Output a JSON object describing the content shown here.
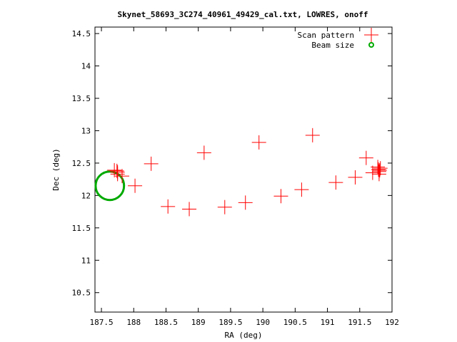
{
  "chart_data": {
    "type": "scatter",
    "title": "Skynet_58693_3C274_40961_49429_cal.txt, LOWRES, onoff",
    "xlabel": "RA (deg)",
    "ylabel": "Dec (deg)",
    "xlim": [
      187.4,
      192
    ],
    "ylim": [
      10.2,
      14.6
    ],
    "x_ticks": [
      187.5,
      188,
      188.5,
      189,
      189.5,
      190,
      190.5,
      191,
      191.5,
      192
    ],
    "x_tick_labels": [
      "187.5",
      "188",
      "188.5",
      "189",
      "189.5",
      "190",
      "190.5",
      "191",
      "191.5",
      "192"
    ],
    "y_ticks": [
      10.5,
      11,
      11.5,
      12,
      12.5,
      13,
      13.5,
      14,
      14.5
    ],
    "y_tick_labels": [
      "10.5",
      "11",
      "11.5",
      "12",
      "12.5",
      "13",
      "13.5",
      "14",
      "14.5"
    ],
    "grid": false,
    "legend_position": "top-right",
    "series": [
      {
        "name": "Scan pattern",
        "color": "#ff0000",
        "marker": "plus",
        "points": [
          [
            187.7,
            12.39
          ],
          [
            187.74,
            12.38
          ],
          [
            187.75,
            12.36
          ],
          [
            187.75,
            12.33
          ],
          [
            187.82,
            12.3
          ],
          [
            188.02,
            12.15
          ],
          [
            188.27,
            12.49
          ],
          [
            188.53,
            11.83
          ],
          [
            188.86,
            11.79
          ],
          [
            189.09,
            12.66
          ],
          [
            189.41,
            11.82
          ],
          [
            189.73,
            11.89
          ],
          [
            189.94,
            12.82
          ],
          [
            190.28,
            11.99
          ],
          [
            190.6,
            12.09
          ],
          [
            190.77,
            12.93
          ],
          [
            191.13,
            12.2
          ],
          [
            191.43,
            12.28
          ],
          [
            191.6,
            12.58
          ],
          [
            191.7,
            12.35
          ],
          [
            191.78,
            12.44
          ],
          [
            191.79,
            12.4
          ],
          [
            191.8,
            12.37
          ],
          [
            191.8,
            12.33
          ],
          [
            191.81,
            12.39
          ],
          [
            191.82,
            12.42
          ]
        ]
      },
      {
        "name": "Beam size",
        "color": "#00aa00",
        "marker": "circle",
        "circle": {
          "center_ra": 187.63,
          "center_dec": 12.15,
          "radius_deg": 0.22
        }
      }
    ]
  }
}
